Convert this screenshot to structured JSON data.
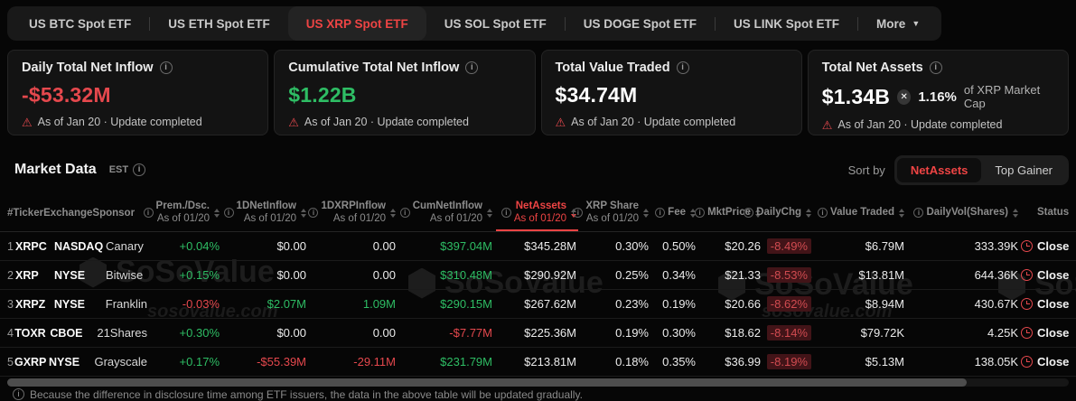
{
  "colors": {
    "accent_red": "#ee4444",
    "value_red": "#e5484d",
    "value_green": "#2ebd64"
  },
  "tab_bar": {
    "tabs": [
      {
        "label": "US BTC Spot ETF",
        "active": false
      },
      {
        "label": "US ETH Spot ETF",
        "active": false
      },
      {
        "label": "US XRP Spot ETF",
        "active": true
      },
      {
        "label": "US SOL Spot ETF",
        "active": false
      },
      {
        "label": "US DOGE Spot ETF",
        "active": false
      },
      {
        "label": "US LINK Spot ETF",
        "active": false
      },
      {
        "label": "More",
        "active": false,
        "has_dropdown": true
      }
    ]
  },
  "stat_cards": [
    {
      "title": "Daily Total Net Inflow",
      "value": "-$53.32M",
      "value_color": "red",
      "status": "As of Jan 20 · Update completed"
    },
    {
      "title": "Cumulative Total Net Inflow",
      "value": "$1.22B",
      "value_color": "green",
      "status": "As of Jan 20 · Update completed"
    },
    {
      "title": "Total Value Traded",
      "value": "$34.74M",
      "value_color": "white",
      "status": "As of Jan 20 · Update completed"
    },
    {
      "title": "Total Net Assets",
      "value": "$1.34B",
      "value_color": "white",
      "market_cap_pct": "1.16%",
      "market_cap_label": "of XRP Market Cap",
      "status": "As of Jan 20 · Update completed"
    }
  ],
  "market_data": {
    "title": "Market Data",
    "timezone": "EST",
    "sort_by_label": "Sort by",
    "sort_options": [
      {
        "label": "NetAssets",
        "active": true
      },
      {
        "label": "Top Gainer",
        "active": false
      }
    ]
  },
  "table": {
    "name_header": "#TickerExchangeSponsor",
    "as_of": "As of 01/20",
    "columns": [
      {
        "id": "prem",
        "label": "Prem./Dsc.",
        "as_of": true
      },
      {
        "id": "ndi",
        "label": "1DNetInflow",
        "as_of": true
      },
      {
        "id": "xdi",
        "label": "1DXRPInflow",
        "as_of": true
      },
      {
        "id": "cum",
        "label": "CumNetInflow",
        "as_of": true
      },
      {
        "id": "na",
        "label": "NetAssets",
        "as_of": true,
        "active": true
      },
      {
        "id": "share",
        "label": "XRP Share",
        "as_of": true
      },
      {
        "id": "fee",
        "label": "Fee"
      },
      {
        "id": "price",
        "label": "MktPrice"
      },
      {
        "id": "chg",
        "label": "DailyChg"
      },
      {
        "id": "vt",
        "label": "Value Traded"
      },
      {
        "id": "vol",
        "label": "DailyVol(Shares)"
      },
      {
        "id": "status",
        "label": "Status",
        "no_icons": true
      }
    ],
    "rows": [
      {
        "rank": "1",
        "ticker": "XRPC",
        "exchange": "NASDAQ",
        "sponsor": "Canary",
        "prem": {
          "v": "+0.04%",
          "c": "green"
        },
        "ndi": {
          "v": "$0.00",
          "c": "white"
        },
        "xdi": {
          "v": "0.00",
          "c": "white"
        },
        "cum": {
          "v": "$397.04M",
          "c": "green"
        },
        "na": {
          "v": "$345.28M",
          "c": "white"
        },
        "share": {
          "v": "0.30%",
          "c": "white"
        },
        "fee": {
          "v": "0.50%",
          "c": "white"
        },
        "price": {
          "v": "$20.26",
          "c": "white"
        },
        "chg": {
          "v": "-8.49%",
          "c": "pill"
        },
        "vt": {
          "v": "$6.79M",
          "c": "white"
        },
        "vol": {
          "v": "333.39K",
          "c": "white"
        },
        "status": "Close"
      },
      {
        "rank": "2",
        "ticker": "XRP",
        "exchange": "NYSE",
        "sponsor": "Bitwise",
        "prem": {
          "v": "+0.15%",
          "c": "green"
        },
        "ndi": {
          "v": "$0.00",
          "c": "white"
        },
        "xdi": {
          "v": "0.00",
          "c": "white"
        },
        "cum": {
          "v": "$310.48M",
          "c": "green"
        },
        "na": {
          "v": "$290.92M",
          "c": "white"
        },
        "share": {
          "v": "0.25%",
          "c": "white"
        },
        "fee": {
          "v": "0.34%",
          "c": "white"
        },
        "price": {
          "v": "$21.33",
          "c": "white"
        },
        "chg": {
          "v": "-8.53%",
          "c": "pill"
        },
        "vt": {
          "v": "$13.81M",
          "c": "white"
        },
        "vol": {
          "v": "644.36K",
          "c": "white"
        },
        "status": "Close"
      },
      {
        "rank": "3",
        "ticker": "XRPZ",
        "exchange": "NYSE",
        "sponsor": "Franklin",
        "prem": {
          "v": "-0.03%",
          "c": "red"
        },
        "ndi": {
          "v": "$2.07M",
          "c": "green"
        },
        "xdi": {
          "v": "1.09M",
          "c": "green"
        },
        "cum": {
          "v": "$290.15M",
          "c": "green"
        },
        "na": {
          "v": "$267.62M",
          "c": "white"
        },
        "share": {
          "v": "0.23%",
          "c": "white"
        },
        "fee": {
          "v": "0.19%",
          "c": "white"
        },
        "price": {
          "v": "$20.66",
          "c": "white"
        },
        "chg": {
          "v": "-8.62%",
          "c": "pill"
        },
        "vt": {
          "v": "$8.94M",
          "c": "white"
        },
        "vol": {
          "v": "430.67K",
          "c": "white"
        },
        "status": "Close"
      },
      {
        "rank": "4",
        "ticker": "TOXR",
        "exchange": "CBOE",
        "sponsor": "21Shares",
        "prem": {
          "v": "+0.30%",
          "c": "green"
        },
        "ndi": {
          "v": "$0.00",
          "c": "white"
        },
        "xdi": {
          "v": "0.00",
          "c": "white"
        },
        "cum": {
          "v": "-$7.77M",
          "c": "red"
        },
        "na": {
          "v": "$225.36M",
          "c": "white"
        },
        "share": {
          "v": "0.19%",
          "c": "white"
        },
        "fee": {
          "v": "0.30%",
          "c": "white"
        },
        "price": {
          "v": "$18.62",
          "c": "white"
        },
        "chg": {
          "v": "-8.14%",
          "c": "pill"
        },
        "vt": {
          "v": "$79.72K",
          "c": "white"
        },
        "vol": {
          "v": "4.25K",
          "c": "white"
        },
        "status": "Close"
      },
      {
        "rank": "5",
        "ticker": "GXRP",
        "exchange": "NYSE",
        "sponsor": "Grayscale",
        "prem": {
          "v": "+0.17%",
          "c": "green"
        },
        "ndi": {
          "v": "-$55.39M",
          "c": "red"
        },
        "xdi": {
          "v": "-29.11M",
          "c": "red"
        },
        "cum": {
          "v": "$231.79M",
          "c": "green"
        },
        "na": {
          "v": "$213.81M",
          "c": "white"
        },
        "share": {
          "v": "0.18%",
          "c": "white"
        },
        "fee": {
          "v": "0.35%",
          "c": "white"
        },
        "price": {
          "v": "$36.99",
          "c": "white"
        },
        "chg": {
          "v": "-8.19%",
          "c": "pill"
        },
        "vt": {
          "v": "$5.13M",
          "c": "white"
        },
        "vol": {
          "v": "138.05K",
          "c": "white"
        },
        "status": "Close"
      }
    ]
  },
  "watermark": {
    "brand": "SoSoValue",
    "domain": "sosovalue.com"
  },
  "footer_note": "Because the difference in disclosure time among ETF issuers, the data in the above table will be updated gradually."
}
